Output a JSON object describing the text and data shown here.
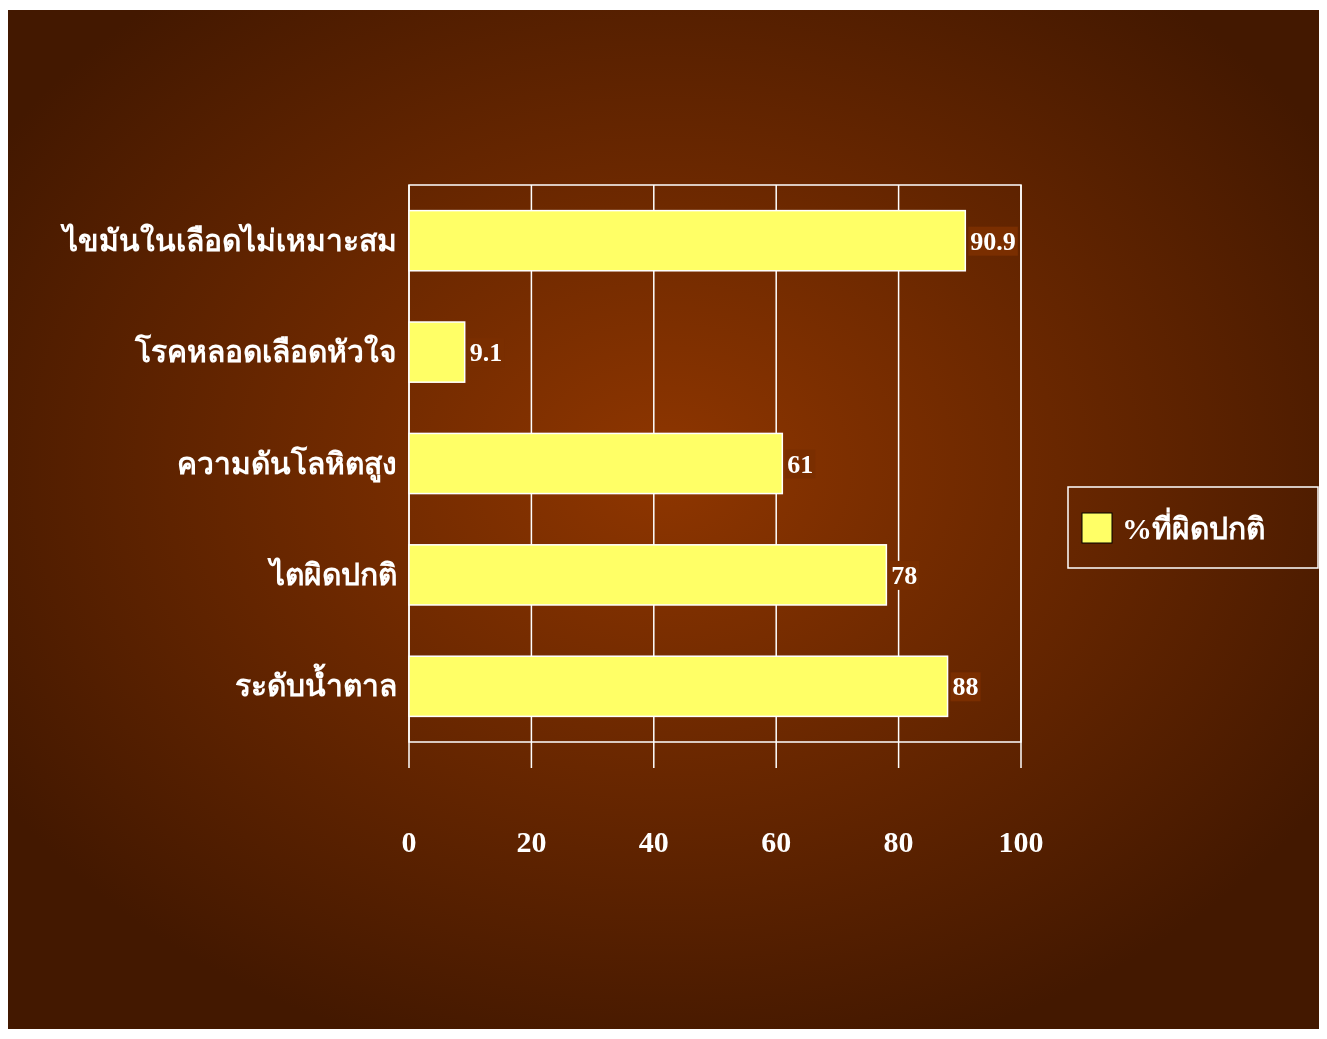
{
  "chart_data": {
    "type": "bar",
    "orientation": "horizontal",
    "categories": [
      "ไขมันในเลือดไม่เหมาะสม",
      "โรคหลอดเลือดหัวใจ",
      "ความดันโลหิตสูง",
      "ไตผิดปกติ",
      "ระดับน้ำตาล"
    ],
    "series": [
      {
        "name": "%ที่ผิดปกติ",
        "color": "#ffff66",
        "values": [
          90.9,
          9.1,
          61,
          78,
          88
        ]
      }
    ],
    "xlim": [
      0,
      100
    ],
    "xticks": [
      0,
      20,
      40,
      60,
      80,
      100
    ],
    "grid": "x",
    "legend": "right",
    "data_labels": true
  }
}
